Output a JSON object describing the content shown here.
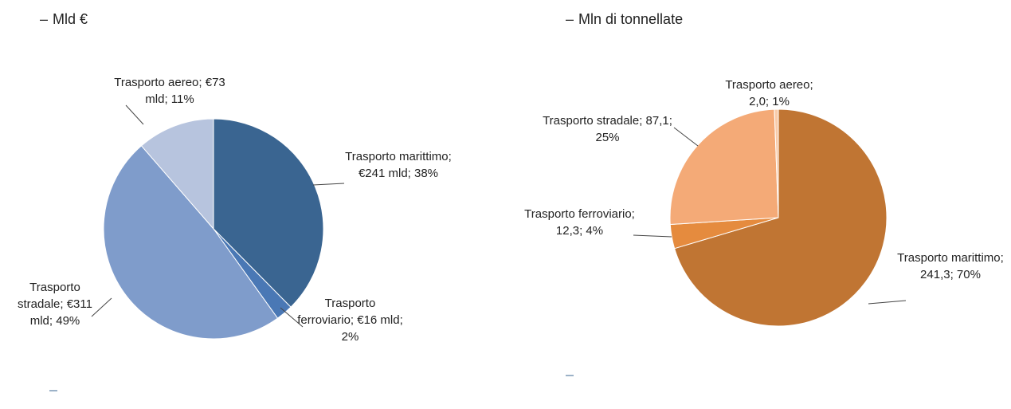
{
  "chart_data": [
    {
      "type": "pie",
      "title": "Mld €",
      "values": [
        241,
        16,
        311,
        73
      ],
      "value_labels": [
        "Trasporto marittimo; €241 mld; 38%",
        "Trasporto ferroviario; €16 mld; 2%",
        "Trasporto stradale; €311 mld; 49%",
        "Trasporto aereo; €73 mld; 11%"
      ],
      "colors": [
        "#3a6591",
        "#4a78b5",
        "#7f9ccb",
        "#b7c4de"
      ]
    },
    {
      "type": "pie",
      "title": "Mln di tonnellate",
      "values": [
        241.3,
        12.3,
        87.1,
        2.0
      ],
      "value_labels": [
        "Trasporto marittimo; 241,3; 70%",
        "Trasporto ferroviario; 12,3; 4%",
        "Trasporto stradale; 87,1; 25%",
        "Trasporto aereo; 2,0; 1%"
      ],
      "colors": [
        "#c07533",
        "#e58b3e",
        "#f4aa77",
        "#f9cba9"
      ]
    }
  ]
}
